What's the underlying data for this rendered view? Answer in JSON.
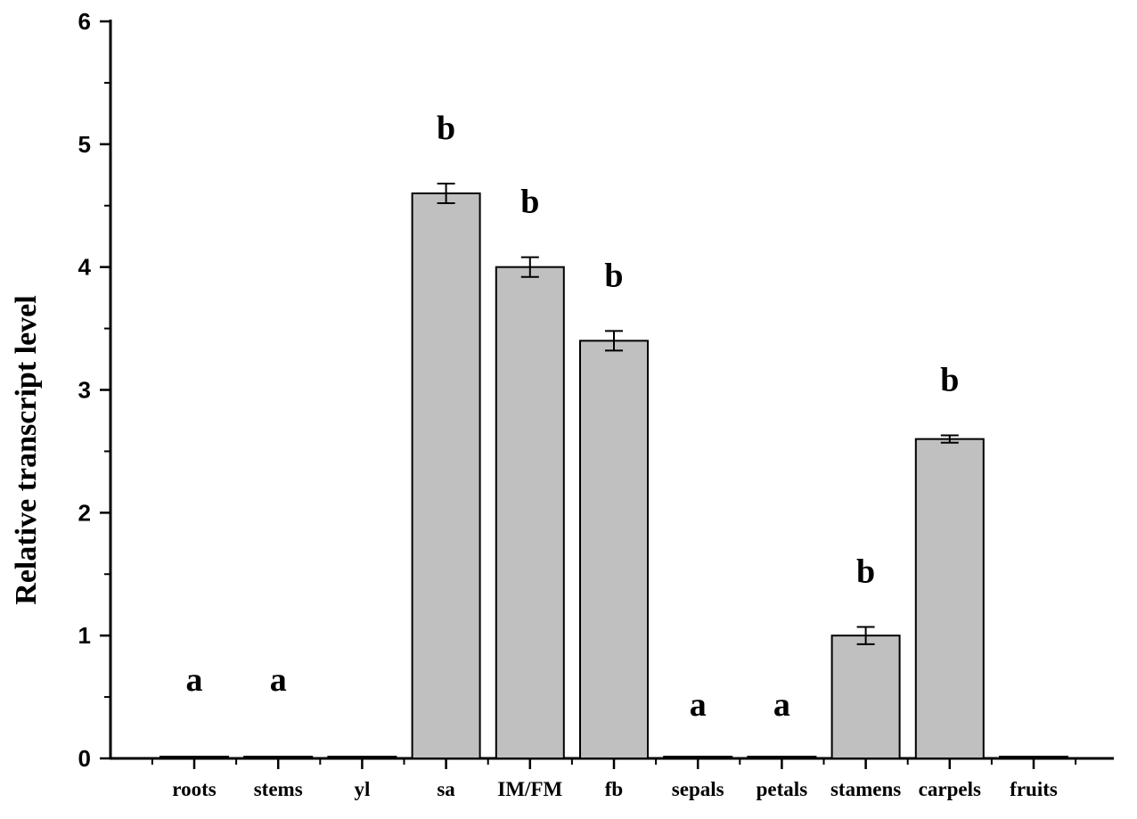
{
  "chart_data": {
    "type": "bar",
    "categories": [
      "roots",
      "stems",
      "yl",
      "sa",
      "IM/FM",
      "fb",
      "sepals",
      "petals",
      "stamens",
      "carpels",
      "fruits"
    ],
    "values": [
      0.01,
      0.01,
      0.01,
      4.6,
      4.0,
      3.4,
      0.01,
      0.01,
      1.0,
      2.6,
      0.01
    ],
    "errors": [
      0,
      0,
      0,
      0.08,
      0.08,
      0.08,
      0,
      0,
      0.07,
      0.03,
      0
    ],
    "significance": [
      "a",
      "a",
      "",
      "b",
      "b",
      "b",
      "a",
      "a",
      "b",
      "b",
      ""
    ],
    "xlabel": "",
    "ylabel": "Relative transcript level",
    "ylim": [
      0,
      6
    ],
    "yticks": [
      "0",
      "1",
      "2",
      "3",
      "4",
      "5",
      "6"
    ],
    "grid": false,
    "bar_color": "#c0c0c0",
    "bar_edge_color": "#000000"
  }
}
